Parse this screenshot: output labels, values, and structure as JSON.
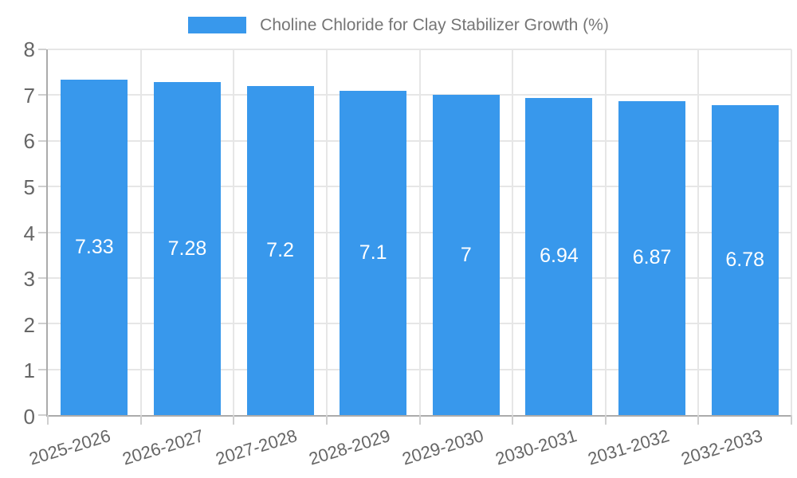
{
  "chart_data": {
    "type": "bar",
    "title": "Choline Chloride for Clay Stabilizer Growth (%)",
    "categories": [
      "2025-2026",
      "2026-2027",
      "2027-2028",
      "2028-2029",
      "2029-2030",
      "2030-2031",
      "2031-2032",
      "2032-2033"
    ],
    "values": [
      7.33,
      7.28,
      7.2,
      7.1,
      7,
      6.94,
      6.87,
      6.78
    ],
    "xlabel": "",
    "ylabel": "",
    "ylim": [
      0,
      8
    ],
    "y_ticks": [
      0,
      1,
      2,
      3,
      4,
      5,
      6,
      7,
      8
    ],
    "grid": true,
    "legend_position": "top-center",
    "x_tick_rotation_deg": -17,
    "bar_value_labels_inside": true,
    "colors": {
      "bar": "#3898EC",
      "bar_value_text": "#FFFFFF",
      "axis_text": "#666666",
      "legend_text": "#757575",
      "gridline": "#E6E6E6",
      "tick_mark": "#CFCFCF",
      "axis_line": "#ABABAB",
      "background": "#FFFFFF"
    }
  }
}
